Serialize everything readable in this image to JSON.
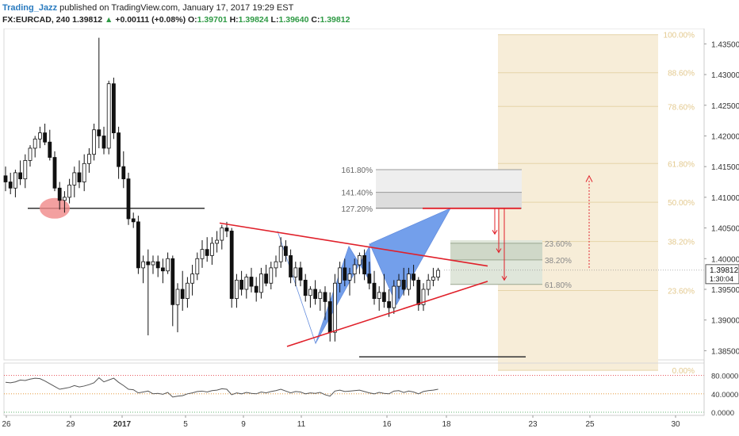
{
  "header": {
    "author": "Trading_Jazz",
    "published_text": "published on TradingView.com, January 17, 2017 19:29 EST",
    "symbol": "FX:EURCAD, 240",
    "last_price": "1.39812",
    "change_arrow": "▲",
    "change": "+0.00111 (+0.08%)",
    "o_label": "O:",
    "o_value": "1.39701",
    "h_label": "H:",
    "h_value": "1.39824",
    "l_label": "L:",
    "l_value": "1.39640",
    "c_label": "C:",
    "c_value": "1.39812"
  },
  "colors": {
    "up": "#2e9a44",
    "accent_red": "#e0202a",
    "pattern_blue": "#5b8fe8",
    "fib_fill": "#f7edd8",
    "fib_line": "#e6d4a8",
    "fib_text": "#e3c98e",
    "price_scale_text": "#333333",
    "last_price_bg": "#ffffff"
  },
  "chart_data": {
    "type": "candlestick",
    "instrument": "FX:EURCAD",
    "timeframe": "240",
    "y_range": [
      1.3835,
      1.4375
    ],
    "y_ticks": [
      "1.43500",
      "1.43000",
      "1.42500",
      "1.42000",
      "1.41500",
      "1.41000",
      "1.40500",
      "1.40000",
      "1.39500",
      "1.39000",
      "1.38500"
    ],
    "x_ticks": [
      "26",
      "29",
      "2017",
      "5",
      "9",
      "11",
      "16",
      "18",
      "23",
      "25",
      "30"
    ],
    "last_price_label": "1.39812",
    "countdown_label": "1:30:04",
    "candles": [
      {
        "o": 1.4135,
        "h": 1.415,
        "l": 1.411,
        "c": 1.4125
      },
      {
        "o": 1.4125,
        "h": 1.414,
        "l": 1.4105,
        "c": 1.4115
      },
      {
        "o": 1.4115,
        "h": 1.4145,
        "l": 1.41,
        "c": 1.414
      },
      {
        "o": 1.414,
        "h": 1.416,
        "l": 1.412,
        "c": 1.413
      },
      {
        "o": 1.413,
        "h": 1.417,
        "l": 1.4115,
        "c": 1.416
      },
      {
        "o": 1.416,
        "h": 1.4185,
        "l": 1.415,
        "c": 1.418
      },
      {
        "o": 1.418,
        "h": 1.42,
        "l": 1.4165,
        "c": 1.4195
      },
      {
        "o": 1.4195,
        "h": 1.4215,
        "l": 1.418,
        "c": 1.4205
      },
      {
        "o": 1.4205,
        "h": 1.422,
        "l": 1.4185,
        "c": 1.419
      },
      {
        "o": 1.419,
        "h": 1.421,
        "l": 1.416,
        "c": 1.4165
      },
      {
        "o": 1.4165,
        "h": 1.4175,
        "l": 1.411,
        "c": 1.4115
      },
      {
        "o": 1.4115,
        "h": 1.4125,
        "l": 1.408,
        "c": 1.4095
      },
      {
        "o": 1.4095,
        "h": 1.411,
        "l": 1.4075,
        "c": 1.41
      },
      {
        "o": 1.41,
        "h": 1.413,
        "l": 1.409,
        "c": 1.412
      },
      {
        "o": 1.412,
        "h": 1.415,
        "l": 1.41,
        "c": 1.414
      },
      {
        "o": 1.414,
        "h": 1.416,
        "l": 1.4115,
        "c": 1.4125
      },
      {
        "o": 1.4125,
        "h": 1.417,
        "l": 1.411,
        "c": 1.4155
      },
      {
        "o": 1.4155,
        "h": 1.418,
        "l": 1.414,
        "c": 1.417
      },
      {
        "o": 1.417,
        "h": 1.422,
        "l": 1.416,
        "c": 1.421
      },
      {
        "o": 1.421,
        "h": 1.436,
        "l": 1.418,
        "c": 1.42
      },
      {
        "o": 1.42,
        "h": 1.4215,
        "l": 1.417,
        "c": 1.418
      },
      {
        "o": 1.418,
        "h": 1.429,
        "l": 1.417,
        "c": 1.4285
      },
      {
        "o": 1.4285,
        "h": 1.4295,
        "l": 1.4195,
        "c": 1.4205
      },
      {
        "o": 1.4205,
        "h": 1.4215,
        "l": 1.413,
        "c": 1.415
      },
      {
        "o": 1.415,
        "h": 1.4175,
        "l": 1.4115,
        "c": 1.413
      },
      {
        "o": 1.413,
        "h": 1.414,
        "l": 1.4055,
        "c": 1.4065
      },
      {
        "o": 1.4065,
        "h": 1.4075,
        "l": 1.405,
        "c": 1.406
      },
      {
        "o": 1.406,
        "h": 1.407,
        "l": 1.3975,
        "c": 1.3985
      },
      {
        "o": 1.3985,
        "h": 1.4005,
        "l": 1.396,
        "c": 1.3995
      },
      {
        "o": 1.3995,
        "h": 1.4015,
        "l": 1.3875,
        "c": 1.399
      },
      {
        "o": 1.399,
        "h": 1.4005,
        "l": 1.3975,
        "c": 1.3995
      },
      {
        "o": 1.3995,
        "h": 1.4005,
        "l": 1.397,
        "c": 1.3985
      },
      {
        "o": 1.3985,
        "h": 1.4,
        "l": 1.396,
        "c": 1.398
      },
      {
        "o": 1.398,
        "h": 1.401,
        "l": 1.3975,
        "c": 1.4
      },
      {
        "o": 1.4,
        "h": 1.4005,
        "l": 1.389,
        "c": 1.3925
      },
      {
        "o": 1.3925,
        "h": 1.396,
        "l": 1.388,
        "c": 1.395
      },
      {
        "o": 1.395,
        "h": 1.398,
        "l": 1.3915,
        "c": 1.3935
      },
      {
        "o": 1.3935,
        "h": 1.397,
        "l": 1.392,
        "c": 1.396
      },
      {
        "o": 1.396,
        "h": 1.399,
        "l": 1.394,
        "c": 1.3975
      },
      {
        "o": 1.3975,
        "h": 1.401,
        "l": 1.3965,
        "c": 1.4
      },
      {
        "o": 1.4,
        "h": 1.403,
        "l": 1.3985,
        "c": 1.4015
      },
      {
        "o": 1.4015,
        "h": 1.4035,
        "l": 1.3995,
        "c": 1.4005
      },
      {
        "o": 1.4005,
        "h": 1.4035,
        "l": 1.399,
        "c": 1.4025
      },
      {
        "o": 1.4025,
        "h": 1.4045,
        "l": 1.401,
        "c": 1.403
      },
      {
        "o": 1.403,
        "h": 1.4055,
        "l": 1.4015,
        "c": 1.405
      },
      {
        "o": 1.405,
        "h": 1.406,
        "l": 1.4035,
        "c": 1.4045
      },
      {
        "o": 1.4045,
        "h": 1.405,
        "l": 1.392,
        "c": 1.3935
      },
      {
        "o": 1.3935,
        "h": 1.3975,
        "l": 1.392,
        "c": 1.3965
      },
      {
        "o": 1.3965,
        "h": 1.398,
        "l": 1.394,
        "c": 1.395
      },
      {
        "o": 1.395,
        "h": 1.3975,
        "l": 1.3935,
        "c": 1.397
      },
      {
        "o": 1.397,
        "h": 1.3985,
        "l": 1.3945,
        "c": 1.3955
      },
      {
        "o": 1.3955,
        "h": 1.397,
        "l": 1.393,
        "c": 1.3945
      },
      {
        "o": 1.3945,
        "h": 1.3985,
        "l": 1.3935,
        "c": 1.3975
      },
      {
        "o": 1.3975,
        "h": 1.399,
        "l": 1.3955,
        "c": 1.396
      },
      {
        "o": 1.396,
        "h": 1.3995,
        "l": 1.395,
        "c": 1.3985
      },
      {
        "o": 1.3985,
        "h": 1.4005,
        "l": 1.397,
        "c": 1.3995
      },
      {
        "o": 1.3995,
        "h": 1.4035,
        "l": 1.3985,
        "c": 1.402
      },
      {
        "o": 1.402,
        "h": 1.403,
        "l": 1.3995,
        "c": 1.4005
      },
      {
        "o": 1.4005,
        "h": 1.4015,
        "l": 1.396,
        "c": 1.397
      },
      {
        "o": 1.397,
        "h": 1.3995,
        "l": 1.3955,
        "c": 1.3985
      },
      {
        "o": 1.3985,
        "h": 1.3995,
        "l": 1.3955,
        "c": 1.3965
      },
      {
        "o": 1.3965,
        "h": 1.3975,
        "l": 1.393,
        "c": 1.394
      },
      {
        "o": 1.394,
        "h": 1.3955,
        "l": 1.392,
        "c": 1.395
      },
      {
        "o": 1.395,
        "h": 1.3965,
        "l": 1.3925,
        "c": 1.3935
      },
      {
        "o": 1.3935,
        "h": 1.395,
        "l": 1.3915,
        "c": 1.3945
      },
      {
        "o": 1.3945,
        "h": 1.3955,
        "l": 1.39,
        "c": 1.393
      },
      {
        "o": 1.393,
        "h": 1.3945,
        "l": 1.3865,
        "c": 1.388
      },
      {
        "o": 1.388,
        "h": 1.3975,
        "l": 1.3865,
        "c": 1.396
      },
      {
        "o": 1.396,
        "h": 1.3995,
        "l": 1.3945,
        "c": 1.3985
      },
      {
        "o": 1.3985,
        "h": 1.4,
        "l": 1.3955,
        "c": 1.3965
      },
      {
        "o": 1.3965,
        "h": 1.3985,
        "l": 1.394,
        "c": 1.3975
      },
      {
        "o": 1.3975,
        "h": 1.4,
        "l": 1.396,
        "c": 1.399
      },
      {
        "o": 1.399,
        "h": 1.401,
        "l": 1.3975,
        "c": 1.4005
      },
      {
        "o": 1.4005,
        "h": 1.4015,
        "l": 1.3965,
        "c": 1.3975
      },
      {
        "o": 1.3975,
        "h": 1.3995,
        "l": 1.395,
        "c": 1.396
      },
      {
        "o": 1.396,
        "h": 1.398,
        "l": 1.3925,
        "c": 1.3935
      },
      {
        "o": 1.3935,
        "h": 1.3955,
        "l": 1.3915,
        "c": 1.3945
      },
      {
        "o": 1.3945,
        "h": 1.3975,
        "l": 1.392,
        "c": 1.393
      },
      {
        "o": 1.393,
        "h": 1.395,
        "l": 1.3905,
        "c": 1.392
      },
      {
        "o": 1.392,
        "h": 1.3965,
        "l": 1.391,
        "c": 1.3955
      },
      {
        "o": 1.3955,
        "h": 1.3975,
        "l": 1.3935,
        "c": 1.3965
      },
      {
        "o": 1.3965,
        "h": 1.3985,
        "l": 1.394,
        "c": 1.395
      },
      {
        "o": 1.395,
        "h": 1.3985,
        "l": 1.394,
        "c": 1.3975
      },
      {
        "o": 1.3975,
        "h": 1.399,
        "l": 1.3955,
        "c": 1.3965
      },
      {
        "o": 1.3965,
        "h": 1.397,
        "l": 1.3915,
        "c": 1.3925
      },
      {
        "o": 1.3925,
        "h": 1.396,
        "l": 1.3915,
        "c": 1.395
      },
      {
        "o": 1.395,
        "h": 1.3975,
        "l": 1.394,
        "c": 1.3965
      },
      {
        "o": 1.3965,
        "h": 1.3985,
        "l": 1.3955,
        "c": 1.397
      },
      {
        "o": 1.397,
        "h": 1.3985,
        "l": 1.3964,
        "c": 1.3981
      }
    ],
    "rsi": {
      "levels": [
        80,
        40,
        0
      ],
      "scale_labels": [
        "80.0000",
        "40.0000",
        "0.0000"
      ],
      "range": [
        0,
        100
      ],
      "values": [
        65,
        64,
        66,
        70,
        69,
        72,
        74,
        73,
        68,
        62,
        56,
        50,
        52,
        54,
        58,
        55,
        57,
        60,
        64,
        75,
        66,
        70,
        74,
        65,
        58,
        50,
        49,
        42,
        44,
        46,
        40,
        41,
        39,
        43,
        33,
        35,
        36,
        40,
        42,
        45,
        46,
        44,
        47,
        48,
        51,
        50,
        38,
        42,
        40,
        43,
        41,
        40,
        44,
        42,
        45,
        47,
        50,
        46,
        42,
        45,
        44,
        40,
        42,
        41,
        43,
        38,
        35,
        46,
        48,
        45,
        46,
        47,
        48,
        45,
        42,
        40,
        43,
        41,
        40,
        46,
        47,
        43,
        46,
        44,
        40,
        45,
        47,
        48,
        50
      ]
    },
    "annotations": {
      "support_line_1": {
        "price": 1.4082
      },
      "support_line_2": {
        "price": 1.384
      },
      "target_line": {
        "price": 1.4082,
        "color": "red"
      },
      "upper_trendline": [
        [
          1.4058,
          0
        ],
        [
          1.3988,
          1
        ]
      ],
      "lower_trendline": [
        [
          1.3857,
          0
        ],
        [
          1.3963,
          1
        ]
      ],
      "fib_extension_labels": [
        "161.80%",
        "141.40%",
        "127.20%"
      ],
      "fib_extension_levels": [
        1.4145,
        1.4108,
        1.4082
      ],
      "fib_retrace_small_labels": [
        "23.60%",
        "38.20%",
        "61.80%"
      ],
      "fib_retrace_small_levels": [
        1.4025,
        1.3998,
        1.3958
      ],
      "fib_retrace_large_labels": [
        "100.00%",
        "88.60%",
        "78.60%",
        "61.80%",
        "50.00%",
        "38.20%",
        "23.60%",
        "0.00%"
      ],
      "fib_retrace_large_levels": [
        1.4365,
        1.4303,
        1.4248,
        1.4155,
        1.4092,
        1.4028,
        1.3948,
        1.3818
      ]
    }
  }
}
